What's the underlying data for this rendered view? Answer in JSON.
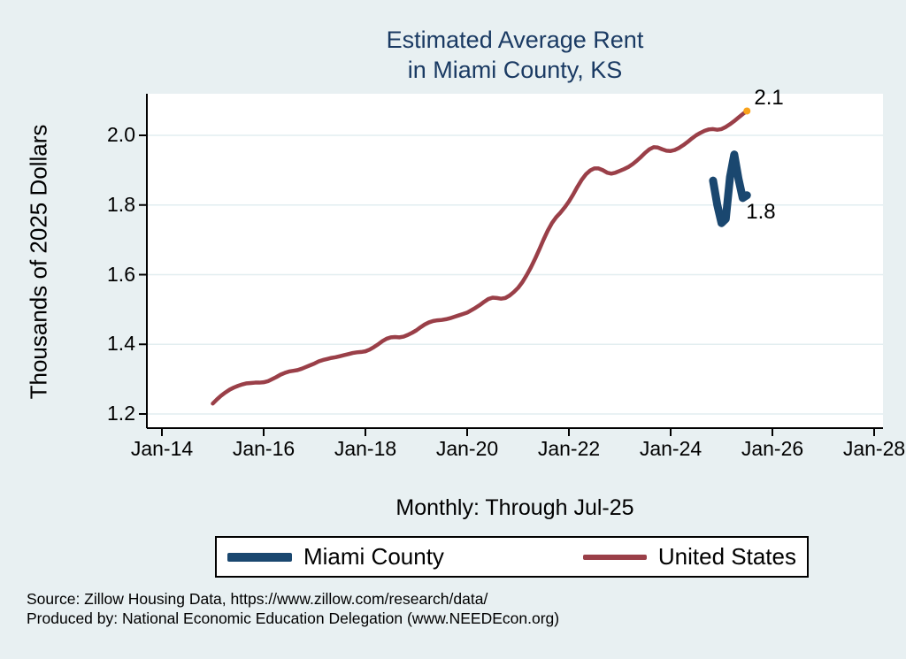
{
  "title": {
    "line1": "Estimated Average Rent",
    "line2": "in Miami County, KS"
  },
  "subtitle": "Monthly: Through Jul-25",
  "y_axis_title": "Thousands of 2025 Dollars",
  "source": {
    "line1": "Source: Zillow Housing Data, https://www.zillow.com/research/data/",
    "line2": "Produced by: National Economic Education Delegation (www.NEEDEcon.org)"
  },
  "legend": {
    "items": [
      {
        "label": "Miami County",
        "color": "#1a476f",
        "swatch_w": 73,
        "swatch_h": 10
      },
      {
        "label": "United States",
        "color": "#9a3f48",
        "swatch_w": 72,
        "swatch_h": 6
      }
    ]
  },
  "colors": {
    "background": "#e8f0f2",
    "plot_background": "#ffffff",
    "gridline": "#e2eef0",
    "axis": "#000000",
    "title": "#1a3a63",
    "miami_line": "#1a476f",
    "us_line": "#9a3f48",
    "end_dot": "#f9a21a"
  },
  "chart_data": {
    "type": "line",
    "title": "Estimated Average Rent in Miami County, KS",
    "subtitle": "Monthly: Through Jul-25",
    "ylabel": "Thousands of 2025 Dollars",
    "xlabel": "",
    "grid": "horizontal",
    "legend_position": "bottom",
    "ylim": [
      1.16,
      2.12
    ],
    "x_ticks": [
      {
        "label": "Jan-14",
        "month": 0
      },
      {
        "label": "Jan-16",
        "month": 24
      },
      {
        "label": "Jan-18",
        "month": 48
      },
      {
        "label": "Jan-20",
        "month": 72
      },
      {
        "label": "Jan-22",
        "month": 96
      },
      {
        "label": "Jan-24",
        "month": 120
      },
      {
        "label": "Jan-26",
        "month": 144
      },
      {
        "label": "Jan-28",
        "month": 168
      }
    ],
    "y_ticks": [
      {
        "label": "2.0",
        "value": 2.0
      },
      {
        "label": "1.8",
        "value": 1.8
      },
      {
        "label": "1.6",
        "value": 1.6
      },
      {
        "label": "1.4",
        "value": 1.4
      },
      {
        "label": "1.2",
        "value": 1.2
      }
    ],
    "x_unit": "months since Jan-2014",
    "series": [
      {
        "name": "United States",
        "color": "#9a3f48",
        "line_width": 4.5,
        "start_month": 12,
        "start_label": "Jan-15",
        "end_label": "Jul-25",
        "values": [
          1.23,
          1.242,
          1.253,
          1.262,
          1.27,
          1.276,
          1.281,
          1.285,
          1.288,
          1.289,
          1.29,
          1.29,
          1.291,
          1.294,
          1.3,
          1.306,
          1.313,
          1.318,
          1.322,
          1.324,
          1.326,
          1.33,
          1.335,
          1.34,
          1.345,
          1.351,
          1.355,
          1.358,
          1.361,
          1.363,
          1.366,
          1.369,
          1.372,
          1.375,
          1.377,
          1.378,
          1.38,
          1.385,
          1.392,
          1.4,
          1.409,
          1.416,
          1.42,
          1.421,
          1.42,
          1.422,
          1.427,
          1.433,
          1.44,
          1.449,
          1.457,
          1.463,
          1.467,
          1.469,
          1.47,
          1.472,
          1.475,
          1.479,
          1.483,
          1.487,
          1.491,
          1.498,
          1.505,
          1.513,
          1.522,
          1.53,
          1.534,
          1.533,
          1.531,
          1.533,
          1.54,
          1.55,
          1.562,
          1.578,
          1.598,
          1.62,
          1.645,
          1.672,
          1.7,
          1.726,
          1.748,
          1.765,
          1.778,
          1.793,
          1.81,
          1.83,
          1.852,
          1.872,
          1.888,
          1.899,
          1.905,
          1.905,
          1.9,
          1.893,
          1.89,
          1.893,
          1.898,
          1.903,
          1.909,
          1.917,
          1.927,
          1.938,
          1.95,
          1.96,
          1.966,
          1.965,
          1.96,
          1.956,
          1.955,
          1.958,
          1.964,
          1.972,
          1.981,
          1.991,
          2.0,
          2.007,
          2.013,
          2.017,
          2.018,
          2.016,
          2.018,
          2.024,
          2.032,
          2.041,
          2.051,
          2.061,
          2.07
        ]
      },
      {
        "name": "Miami County",
        "color": "#1a476f",
        "line_width": 9,
        "start_month": 130,
        "start_label": "Nov-24",
        "end_label": "Jul-25",
        "values": [
          1.87,
          1.8,
          1.748,
          1.76,
          1.88,
          1.945,
          1.875,
          1.82,
          1.828
        ]
      }
    ],
    "end_dot": {
      "series": "United States",
      "color": "#f9a21a",
      "radius": 4
    },
    "annotations": [
      {
        "label": "2.1",
        "month": 139.7,
        "value": 2.142
      },
      {
        "label": "1.8",
        "month": 137.8,
        "value": 1.815
      }
    ]
  }
}
